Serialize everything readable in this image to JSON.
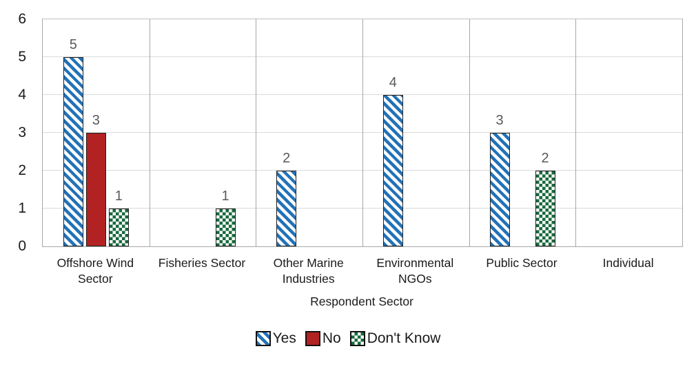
{
  "chart_data": {
    "type": "bar",
    "title": "",
    "xlabel": "Respondent Sector",
    "ylabel": "",
    "ylim": [
      0,
      6
    ],
    "yticks": [
      0,
      1,
      2,
      3,
      4,
      5,
      6
    ],
    "grid": true,
    "legend_position": "bottom",
    "data_labels_shown": true,
    "categories": [
      "Offshore Wind Sector",
      "Fisheries Sector",
      "Other Marine Industries",
      "Environmental NGOs",
      "Public Sector",
      "Individual"
    ],
    "series": [
      {
        "name": "Yes",
        "pattern": "diagonal-stripes",
        "color": "#2272b8",
        "values": [
          5,
          0,
          2,
          4,
          3,
          0
        ]
      },
      {
        "name": "No",
        "pattern": "solid",
        "color": "#b22222",
        "values": [
          3,
          0,
          0,
          0,
          0,
          0
        ]
      },
      {
        "name": "Don't Know",
        "pattern": "checker",
        "color": "#17693c",
        "values": [
          1,
          1,
          0,
          0,
          2,
          0
        ]
      }
    ],
    "colors": {
      "data_label": "#595959",
      "gridline": "#d9d9d9",
      "axis_line": "#a6a6a6",
      "bar_outline": "#1f1f1f"
    }
  }
}
